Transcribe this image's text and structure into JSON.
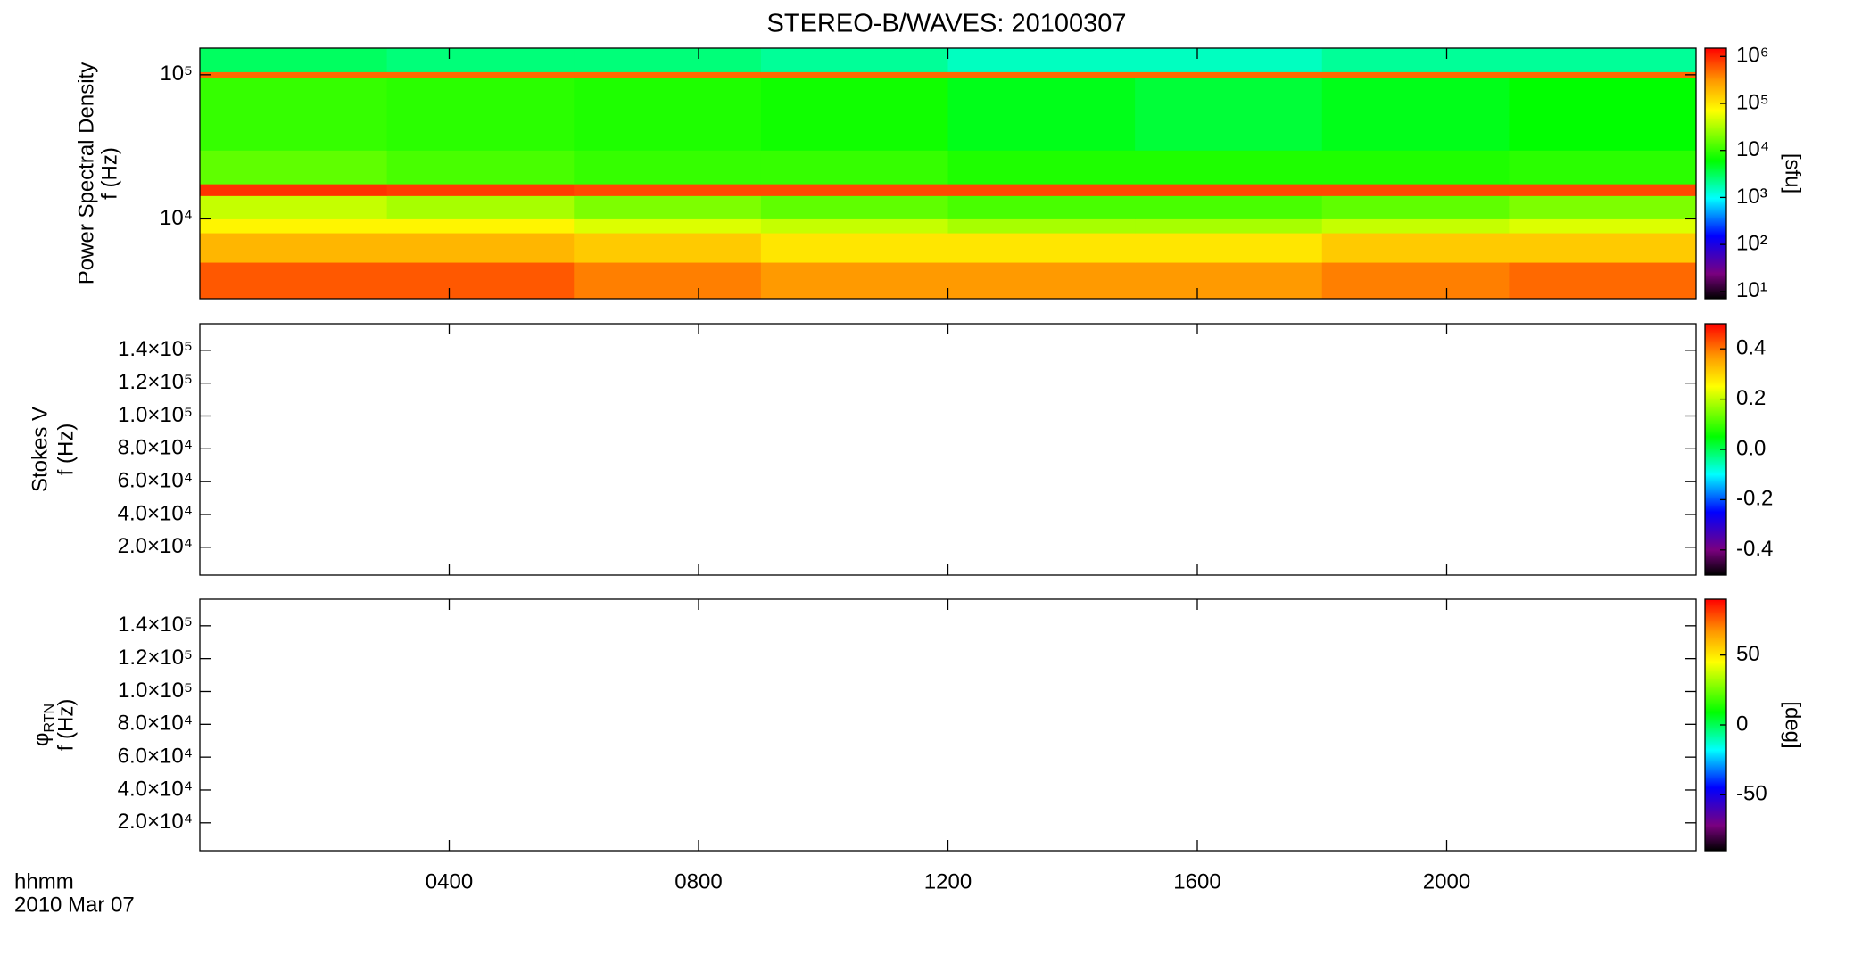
{
  "chart_data": [
    {
      "type": "heatmap",
      "title": "STEREO-B/WAVES: 20100307",
      "ylabel": "Power Spectral Density",
      "ylabel2": "f (Hz)",
      "xlim": [
        0,
        24
      ],
      "xticks": [
        4,
        8,
        12,
        16,
        20
      ],
      "ylim": [
        2790,
        153000
      ],
      "ylog": true,
      "yticks": [
        {
          "value": 10000,
          "label": "10⁴"
        },
        {
          "value": 100000,
          "label": "10⁵"
        }
      ],
      "spectrogram": {
        "time_bins": [
          0,
          3,
          6,
          9,
          12,
          15,
          18,
          21,
          24
        ],
        "freq_bins": [
          2790,
          5000,
          8000,
          10000,
          14500,
          17500,
          30000,
          95000,
          105000,
          153000
        ],
        "values": [
          [
            600000,
            600000,
            400000,
            300000,
            300000,
            300000,
            400000,
            500000
          ],
          [
            200000,
            200000,
            150000,
            100000,
            100000,
            100000,
            150000,
            150000
          ],
          [
            80000,
            80000,
            50000,
            40000,
            30000,
            30000,
            40000,
            50000
          ],
          [
            40000,
            30000,
            20000,
            15000,
            12000,
            12000,
            15000,
            20000
          ],
          [
            900000,
            800000,
            700000,
            700000,
            700000,
            700000,
            700000,
            700000
          ],
          [
            15000,
            12000,
            10000,
            10000,
            8000,
            8000,
            8000,
            9000
          ],
          [
            10000,
            9000,
            8000,
            7000,
            5000,
            4000,
            5000,
            6000
          ],
          [
            500000,
            500000,
            500000,
            500000,
            500000,
            500000,
            500000,
            500000
          ],
          [
            3000,
            2500,
            2500,
            2000,
            1500,
            1500,
            2000,
            2000
          ]
        ]
      },
      "colorbar": {
        "lim": [
          7,
          1500000
        ],
        "log": true,
        "label": "[sfu]",
        "ticks": [
          {
            "value": 10,
            "label": "10¹"
          },
          {
            "value": 100,
            "label": "10²"
          },
          {
            "value": 1000,
            "label": "10³"
          },
          {
            "value": 10000,
            "label": "10⁴"
          },
          {
            "value": 100000,
            "label": "10⁵"
          },
          {
            "value": 1000000,
            "label": "10⁶"
          }
        ]
      }
    },
    {
      "type": "heatmap",
      "ylabel": "Stokes V",
      "ylabel2": "f (Hz)",
      "xlim": [
        0,
        24
      ],
      "xticks": [
        4,
        8,
        12,
        16,
        20
      ],
      "ylim": [
        3060,
        156200
      ],
      "yticks": [
        {
          "value": 20000,
          "label": "2.0×10⁴"
        },
        {
          "value": 40000,
          "label": "4.0×10⁴"
        },
        {
          "value": 60000,
          "label": "6.0×10⁴"
        },
        {
          "value": 80000,
          "label": "8.0×10⁴"
        },
        {
          "value": 100000,
          "label": "1.0×10⁵"
        },
        {
          "value": 120000,
          "label": "1.2×10⁵"
        },
        {
          "value": 140000,
          "label": "1.4×10⁵"
        }
      ],
      "colorbar": {
        "lim": [
          -0.5,
          0.5
        ],
        "ticks": [
          -0.4,
          -0.2,
          {
            "value": 0,
            "label": "0.0"
          },
          0.2,
          0.4
        ]
      }
    },
    {
      "type": "heatmap",
      "ylabel": "φ",
      "ylabel_subscript": "RTN",
      "ylabel2": "f (Hz)",
      "xlabel": "hhmm",
      "date": "2010 Mar 07",
      "xlim": [
        0,
        24
      ],
      "xticks": [
        {
          "value": 4,
          "label": "0400"
        },
        {
          "value": 8,
          "label": "0800"
        },
        {
          "value": 12,
          "label": "1200"
        },
        {
          "value": 16,
          "label": "1600"
        },
        {
          "value": 20,
          "label": "2000"
        }
      ],
      "ylim": [
        3060,
        156200
      ],
      "yticks": [
        {
          "value": 20000,
          "label": "2.0×10⁴"
        },
        {
          "value": 40000,
          "label": "4.0×10⁴"
        },
        {
          "value": 60000,
          "label": "6.0×10⁴"
        },
        {
          "value": 80000,
          "label": "8.0×10⁴"
        },
        {
          "value": 100000,
          "label": "1.0×10⁵"
        },
        {
          "value": 120000,
          "label": "1.2×10⁵"
        },
        {
          "value": 140000,
          "label": "1.4×10⁵"
        }
      ],
      "colorbar": {
        "lim": [
          -90,
          90
        ],
        "label": "[deg]",
        "ticks": [
          -50,
          0,
          50
        ]
      }
    }
  ]
}
